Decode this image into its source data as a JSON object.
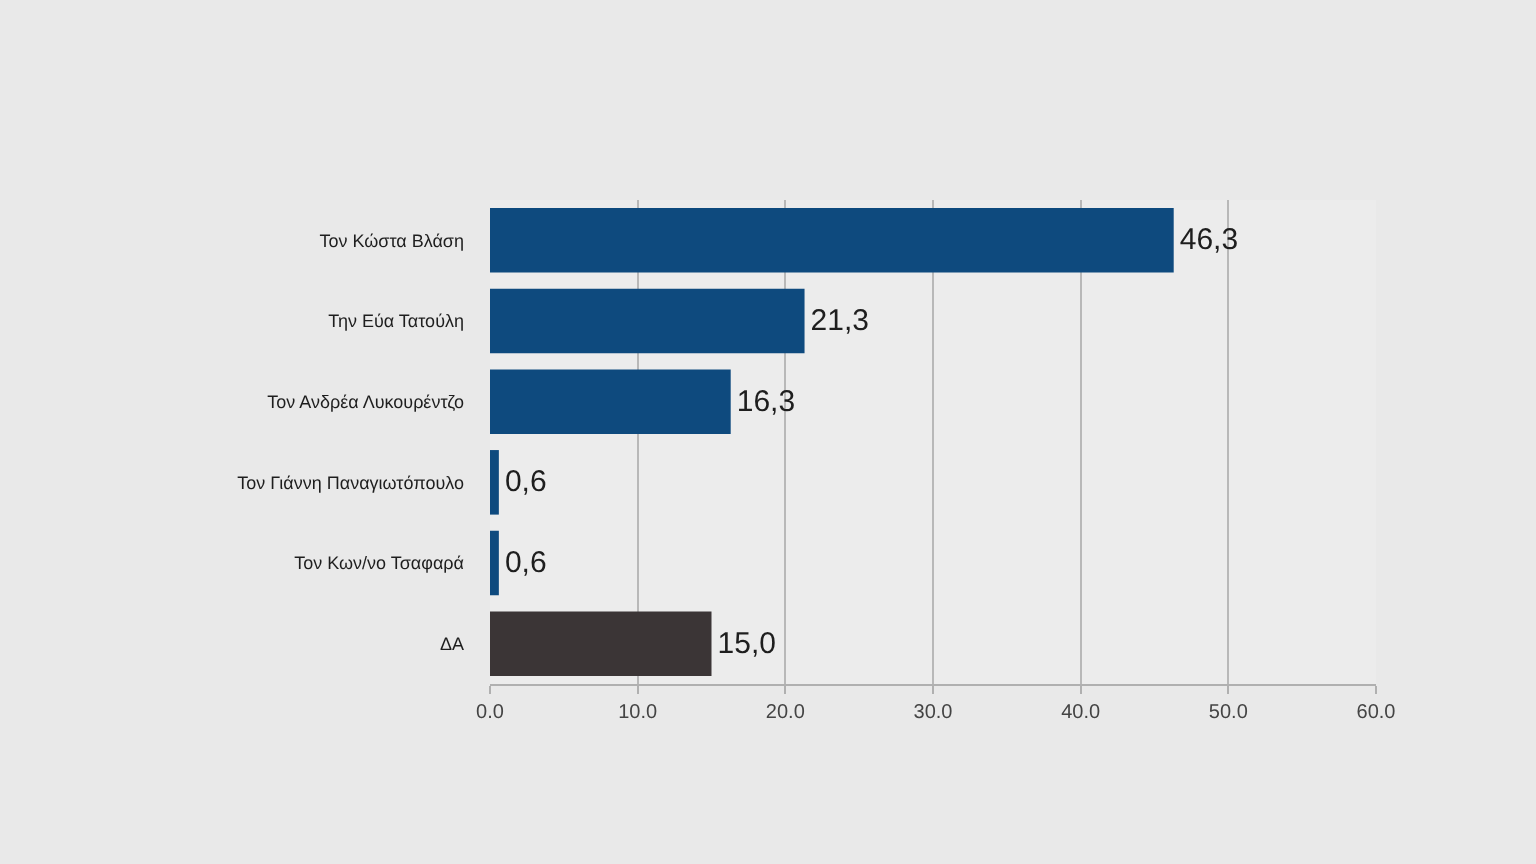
{
  "chart_data": {
    "type": "bar",
    "orientation": "horizontal",
    "categories": [
      "Τον Κώστα Βλάση",
      "Την Εύα Τατούλη",
      "Τον Ανδρέα Λυκουρέντζο",
      "Τον Γιάννη Παναγιωτόπουλο",
      "Τον Κων/νο Τσαφαρά",
      "ΔΑ"
    ],
    "values": [
      46.3,
      21.3,
      16.3,
      0.6,
      0.6,
      15.0
    ],
    "colors": [
      "#0e4a7e",
      "#0e4a7e",
      "#0e4a7e",
      "#0e4a7e",
      "#0e4a7e",
      "#3b3536"
    ],
    "value_labels": [
      "46,3",
      "21,3",
      "16,3",
      "0,6",
      "0,6",
      "15,0"
    ],
    "xlim": [
      0,
      60
    ],
    "xticks": [
      {
        "value": 0,
        "label": "0.0"
      },
      {
        "value": 10,
        "label": "10.0"
      },
      {
        "value": 20,
        "label": "20.0"
      },
      {
        "value": 30,
        "label": "30.0"
      },
      {
        "value": 40,
        "label": "40.0"
      },
      {
        "value": 50,
        "label": "50.0"
      },
      {
        "value": 60,
        "label": "60.0"
      }
    ],
    "grid": "x"
  }
}
